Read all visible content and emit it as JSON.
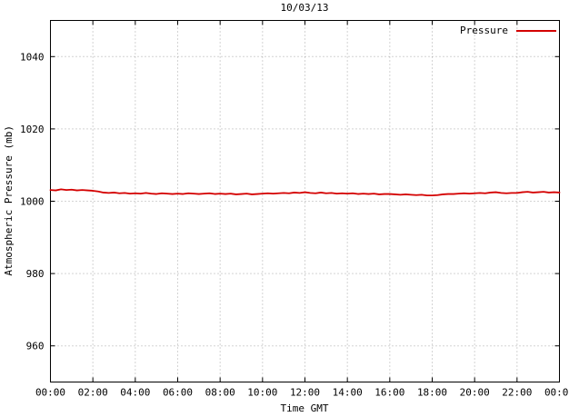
{
  "chart_data": {
    "type": "line",
    "title": "10/03/13",
    "xlabel": "Time GMT",
    "ylabel": "Atmospheric Pressure (mb)",
    "x_tick_labels": [
      "00:00",
      "02:00",
      "04:00",
      "06:00",
      "08:00",
      "10:00",
      "12:00",
      "14:00",
      "16:00",
      "18:00",
      "20:00",
      "22:00",
      "00:00"
    ],
    "x_ticks_hours": [
      0,
      2,
      4,
      6,
      8,
      10,
      12,
      14,
      16,
      18,
      20,
      22,
      24
    ],
    "y_ticks": [
      960,
      980,
      1000,
      1020,
      1040
    ],
    "xlim_hours": [
      0,
      24
    ],
    "ylim": [
      950,
      1050
    ],
    "grid": true,
    "legend_position": "top-right",
    "series": [
      {
        "name": "Pressure",
        "color": "#d40000",
        "x_start_hour": 0,
        "x_end_hour": 24,
        "values": [
          1003.1,
          1003.0,
          1003.3,
          1003.1,
          1003.2,
          1003.0,
          1003.1,
          1003.0,
          1002.9,
          1002.7,
          1002.4,
          1002.3,
          1002.4,
          1002.2,
          1002.3,
          1002.1,
          1002.2,
          1002.1,
          1002.3,
          1002.1,
          1002.0,
          1002.2,
          1002.1,
          1002.0,
          1002.1,
          1002.0,
          1002.2,
          1002.1,
          1002.0,
          1002.1,
          1002.2,
          1002.0,
          1002.1,
          1002.0,
          1002.1,
          1001.9,
          1002.0,
          1002.1,
          1001.9,
          1002.0,
          1002.1,
          1002.2,
          1002.1,
          1002.2,
          1002.3,
          1002.2,
          1002.4,
          1002.3,
          1002.5,
          1002.3,
          1002.2,
          1002.4,
          1002.2,
          1002.3,
          1002.1,
          1002.2,
          1002.1,
          1002.2,
          1002.0,
          1002.1,
          1002.0,
          1002.1,
          1001.9,
          1002.0,
          1002.0,
          1001.9,
          1001.8,
          1001.9,
          1001.8,
          1001.7,
          1001.8,
          1001.6,
          1001.6,
          1001.7,
          1001.9,
          1002.0,
          1002.0,
          1002.1,
          1002.2,
          1002.1,
          1002.2,
          1002.3,
          1002.2,
          1002.4,
          1002.5,
          1002.3,
          1002.2,
          1002.3,
          1002.3,
          1002.5,
          1002.6,
          1002.4,
          1002.5,
          1002.6,
          1002.4,
          1002.5,
          1002.4
        ]
      }
    ]
  },
  "colors": {
    "line": "#d40000",
    "grid": "#a8a8a8",
    "axis": "#000000",
    "background": "#ffffff"
  }
}
